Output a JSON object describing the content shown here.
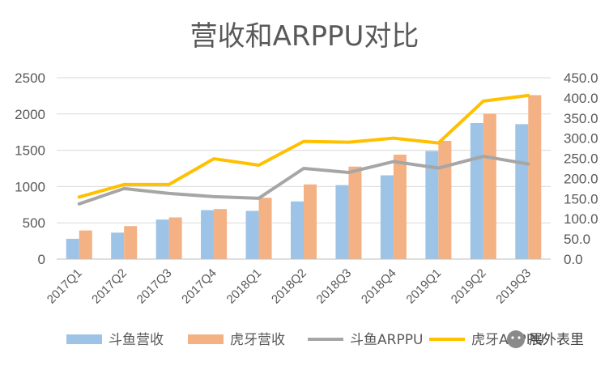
{
  "chart_data": {
    "type": "bar",
    "title": "营收和ARPPU对比",
    "categories": [
      "2017Q1",
      "2017Q2",
      "2017Q3",
      "2017Q4",
      "2018Q1",
      "2018Q2",
      "2018Q3",
      "2018Q4",
      "2019Q1",
      "2019Q2",
      "2019Q3"
    ],
    "y_left": {
      "min": 0,
      "max": 2500,
      "ticks": [
        "0",
        "500",
        "1000",
        "1500",
        "2000",
        "2500"
      ]
    },
    "y_right": {
      "min": 0,
      "max": 450,
      "ticks": [
        "0.0",
        "50.0",
        "100.0",
        "150.0",
        "200.0",
        "250.0",
        "300.0",
        "350.0",
        "400.0",
        "450.0"
      ]
    },
    "grid": true,
    "legend_position": "bottom",
    "series": [
      {
        "name": "斗鱼营收",
        "type": "bar",
        "axis": "left",
        "color": "#9DC3E6",
        "values": [
          280,
          365,
          545,
          675,
          665,
          795,
          1020,
          1155,
          1490,
          1875,
          1860
        ]
      },
      {
        "name": "虎牙营收",
        "type": "bar",
        "axis": "left",
        "color": "#F4B183",
        "values": [
          395,
          455,
          575,
          690,
          845,
          1030,
          1275,
          1440,
          1630,
          2005,
          2260
        ]
      },
      {
        "name": "斗鱼ARPPU",
        "type": "line",
        "axis": "right",
        "color": "#A6A6A6",
        "values": [
          137,
          175,
          163,
          155,
          151,
          225,
          215,
          242,
          226,
          255,
          236
        ]
      },
      {
        "name": "虎牙ARPPU",
        "type": "line",
        "axis": "right",
        "color": "#FFC000",
        "values": [
          154,
          185,
          185,
          249,
          233,
          292,
          290,
          300,
          288,
          392,
          406
        ]
      }
    ]
  },
  "watermark": {
    "text": "展外表里"
  }
}
